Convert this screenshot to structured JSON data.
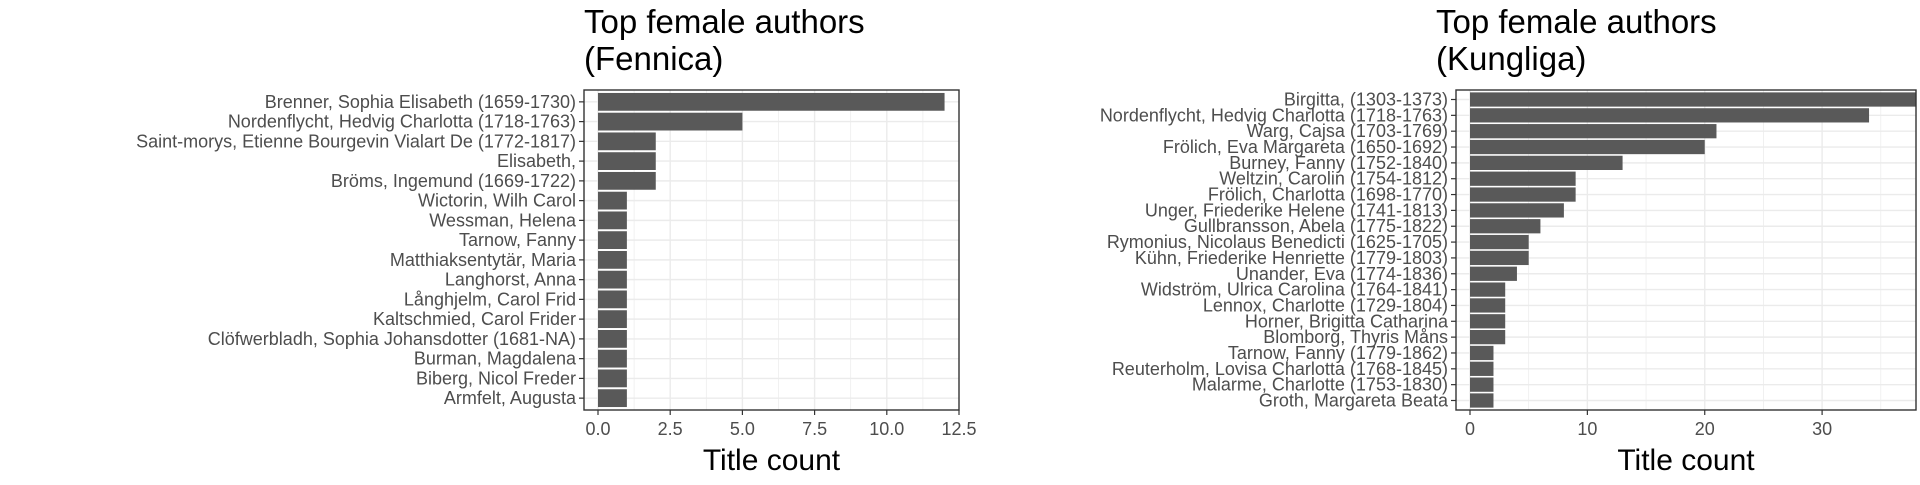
{
  "chart_data": [
    {
      "type": "bar",
      "orientation": "horizontal",
      "title": "Top female authors\n(Fennica)",
      "xlabel": "Title count",
      "ylabel": "",
      "xlim": [
        0,
        12.5
      ],
      "x_ticks": [
        0,
        2.5,
        5,
        7.5,
        10,
        12.5
      ],
      "x_tick_labels": [
        "0.0",
        "2.5",
        "5.0",
        "7.5",
        "10.0",
        "12.5"
      ],
      "grid": true,
      "bar_color": "#595959",
      "categories": [
        "Brenner, Sophia Elisabeth (1659-1730)",
        "Nordenflycht, Hedvig Charlotta (1718-1763)",
        "Saint-morys, Etienne Bourgevin Vialart De (1772-1817)",
        "Elisabeth,",
        "Bröms, Ingemund (1669-1722)",
        "Wictorin, Wilh Carol",
        "Wessman, Helena",
        "Tarnow, Fanny",
        "Matthiaksentytär, Maria",
        "Langhorst, Anna",
        "Långhjelm, Carol Frid",
        "Kaltschmied, Carol Frider",
        "Clöfwerbladh, Sophia Johansdotter (1681-NA)",
        "Burman, Magdalena",
        "Biberg, Nicol Freder",
        "Armfelt, Augusta"
      ],
      "values": [
        12,
        5,
        2,
        2,
        2,
        1,
        1,
        1,
        1,
        1,
        1,
        1,
        1,
        1,
        1,
        1
      ]
    },
    {
      "type": "bar",
      "orientation": "horizontal",
      "title": "Top female authors\n(Kungliga)",
      "xlabel": "Title count",
      "ylabel": "",
      "xlim": [
        0,
        38
      ],
      "x_ticks": [
        0,
        10,
        20,
        30
      ],
      "x_tick_labels": [
        "0",
        "10",
        "20",
        "30"
      ],
      "grid": true,
      "bar_color": "#595959",
      "categories": [
        "Birgitta,  (1303-1373)",
        "Nordenflycht, Hedvig Charlotta (1718-1763)",
        "Warg, Cajsa (1703-1769)",
        "Frölich, Eva Margareta (1650-1692)",
        "Burney, Fanny (1752-1840)",
        "Weltzin, Carolin (1754-1812)",
        "Frölich, Charlotta (1698-1770)",
        "Unger, Friederike Helene (1741-1813)",
        "Gullbransson, Abela (1775-1822)",
        "Rymonius, Nicolaus Benedicti (1625-1705)",
        "Kühn, Friederike Henriette (1779-1803)",
        "Unander, Eva (1774-1836)",
        "Widström, Ulrica Carolina (1764-1841)",
        "Lennox, Charlotte (1729-1804)",
        "Horner, Brigitta Catharina",
        "Blomborg, Thyris Måns",
        "Tarnow, Fanny (1779-1862)",
        "Reuterholm, Lovisa Charlotta (1768-1845)",
        "Malarme, Charlotte (1753-1830)",
        "Groth, Margareta Beata"
      ],
      "values": [
        38,
        34,
        21,
        20,
        13,
        9,
        9,
        8,
        6,
        5,
        5,
        4,
        3,
        3,
        3,
        3,
        2,
        2,
        2,
        2
      ]
    }
  ]
}
